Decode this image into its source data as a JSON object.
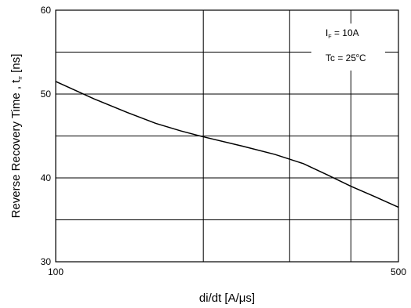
{
  "chart_data": {
    "type": "line",
    "title": "",
    "xlabel": "di/dt [A/μs]",
    "ylabel_main": "Reverse Recovery Time , t",
    "ylabel_sub": "rr",
    "ylabel_unit": " [ns]",
    "x_scale": "log",
    "y_scale": "linear",
    "xlim": [
      100,
      500
    ],
    "ylim": [
      30,
      60
    ],
    "x_ticks": [
      {
        "value": 100,
        "label": "100"
      },
      {
        "value": 500,
        "label": "500"
      }
    ],
    "x_grid": [
      200,
      300,
      400
    ],
    "y_ticks": [
      {
        "value": 30,
        "label": "30"
      },
      {
        "value": 40,
        "label": "40"
      },
      {
        "value": 50,
        "label": "50"
      },
      {
        "value": 60,
        "label": "60"
      }
    ],
    "y_grid": [
      35,
      40,
      45,
      50,
      55
    ],
    "grid": true,
    "legend": "none",
    "series": [
      {
        "x": [
          100,
          110,
          120,
          140,
          160,
          180,
          200,
          240,
          280,
          320,
          360,
          400,
          450,
          500
        ],
        "y": [
          51.5,
          50.4,
          49.4,
          47.8,
          46.5,
          45.6,
          44.9,
          43.8,
          42.8,
          41.7,
          40.3,
          39.0,
          37.7,
          36.5
        ]
      }
    ],
    "annotations": {
      "line1_main": "I",
      "line1_sub": "F",
      "line1_rest": " = 10A",
      "line2_main": "Tc = 25",
      "line2_sup": "o",
      "line2_rest": "C"
    }
  }
}
